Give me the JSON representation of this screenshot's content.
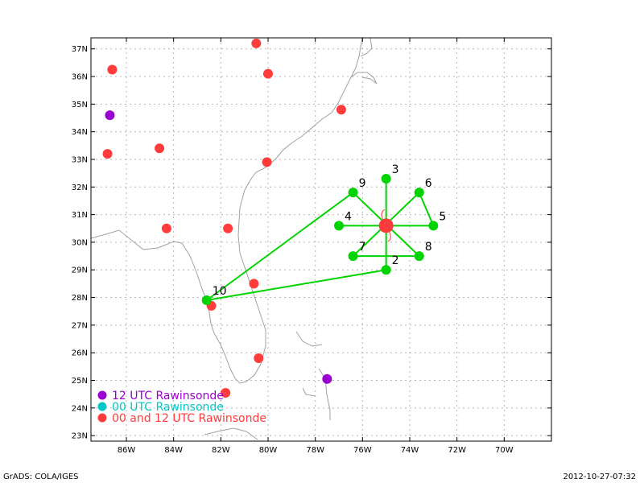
{
  "map": {
    "lon_range": [
      -87.5,
      -68
    ],
    "lat_range": [
      22.8,
      37.4
    ],
    "x_ticks": [
      {
        "lon": -86,
        "label": "86W"
      },
      {
        "lon": -84,
        "label": "84W"
      },
      {
        "lon": -82,
        "label": "82W"
      },
      {
        "lon": -80,
        "label": "80W"
      },
      {
        "lon": -78,
        "label": "78W"
      },
      {
        "lon": -76,
        "label": "76W"
      },
      {
        "lon": -74,
        "label": "74W"
      },
      {
        "lon": -72,
        "label": "72W"
      },
      {
        "lon": -70,
        "label": "70W"
      }
    ],
    "y_ticks": [
      {
        "lat": 23,
        "label": "23N"
      },
      {
        "lat": 24,
        "label": "24N"
      },
      {
        "lat": 25,
        "label": "25N"
      },
      {
        "lat": 26,
        "label": "26N"
      },
      {
        "lat": 27,
        "label": "27N"
      },
      {
        "lat": 28,
        "label": "28N"
      },
      {
        "lat": 29,
        "label": "29N"
      },
      {
        "lat": 30,
        "label": "30N"
      },
      {
        "lat": 31,
        "label": "31N"
      },
      {
        "lat": 32,
        "label": "32N"
      },
      {
        "lat": 33,
        "label": "33N"
      },
      {
        "lat": 34,
        "label": "34N"
      },
      {
        "lat": 35,
        "label": "35N"
      },
      {
        "lat": 36,
        "label": "36N"
      },
      {
        "lat": 37,
        "label": "37N"
      }
    ],
    "grid": true,
    "colors": {
      "red": "#ff3b3b",
      "purple": "#9b00d2",
      "cyan": "#00c8c8",
      "green": "#00d400",
      "coast": "#a0a0a0"
    },
    "red_stations": [
      {
        "lon": -80.5,
        "lat": 37.2
      },
      {
        "lon": -86.6,
        "lat": 36.25
      },
      {
        "lon": -80.0,
        "lat": 36.1
      },
      {
        "lon": -76.9,
        "lat": 34.8
      },
      {
        "lon": -86.8,
        "lat": 33.2
      },
      {
        "lon": -84.6,
        "lat": 33.4
      },
      {
        "lon": -80.05,
        "lat": 32.9
      },
      {
        "lon": -84.3,
        "lat": 30.5
      },
      {
        "lon": -81.7,
        "lat": 30.5
      },
      {
        "lon": -80.6,
        "lat": 28.5
      },
      {
        "lon": -82.4,
        "lat": 27.7
      },
      {
        "lon": -80.4,
        "lat": 25.8
      },
      {
        "lon": -81.8,
        "lat": 24.55
      }
    ],
    "purple_stations": [
      {
        "lon": -86.7,
        "lat": 34.6
      },
      {
        "lon": -77.5,
        "lat": 25.05
      }
    ],
    "storm_center": {
      "lon": -75.0,
      "lat": 30.6
    },
    "green_points": [
      {
        "id": "2",
        "lon": -75.0,
        "lat": 29.0
      },
      {
        "id": "3",
        "lon": -75.0,
        "lat": 32.3
      },
      {
        "id": "4",
        "lon": -77.0,
        "lat": 30.6
      },
      {
        "id": "5",
        "lon": -73.0,
        "lat": 30.6
      },
      {
        "id": "6",
        "lon": -73.6,
        "lat": 31.8
      },
      {
        "id": "7",
        "lon": -76.4,
        "lat": 29.5
      },
      {
        "id": "8",
        "lon": -73.6,
        "lat": 29.5
      },
      {
        "id": "9",
        "lon": -76.4,
        "lat": 31.8
      },
      {
        "id": "10",
        "lon": -82.6,
        "lat": 27.9
      }
    ],
    "green_segments": [
      [
        "3",
        "2"
      ],
      [
        "4",
        "5"
      ],
      [
        "9",
        "8"
      ],
      [
        "6",
        "7"
      ],
      [
        "7",
        "8"
      ],
      [
        "6",
        "5"
      ],
      [
        "9",
        "10"
      ],
      [
        "2",
        "10"
      ]
    ]
  },
  "legend": [
    {
      "label": "12 UTC Rawinsonde",
      "color": "#9b00d2"
    },
    {
      "label": "00 UTC Rawinsonde",
      "color": "#00c8c8"
    },
    {
      "label": "00 and 12 UTC Rawinsonde",
      "color": "#ff3b3b"
    }
  ],
  "footer": {
    "left": "GrADS: COLA/IGES",
    "right": "2012-10-27-07:32"
  }
}
